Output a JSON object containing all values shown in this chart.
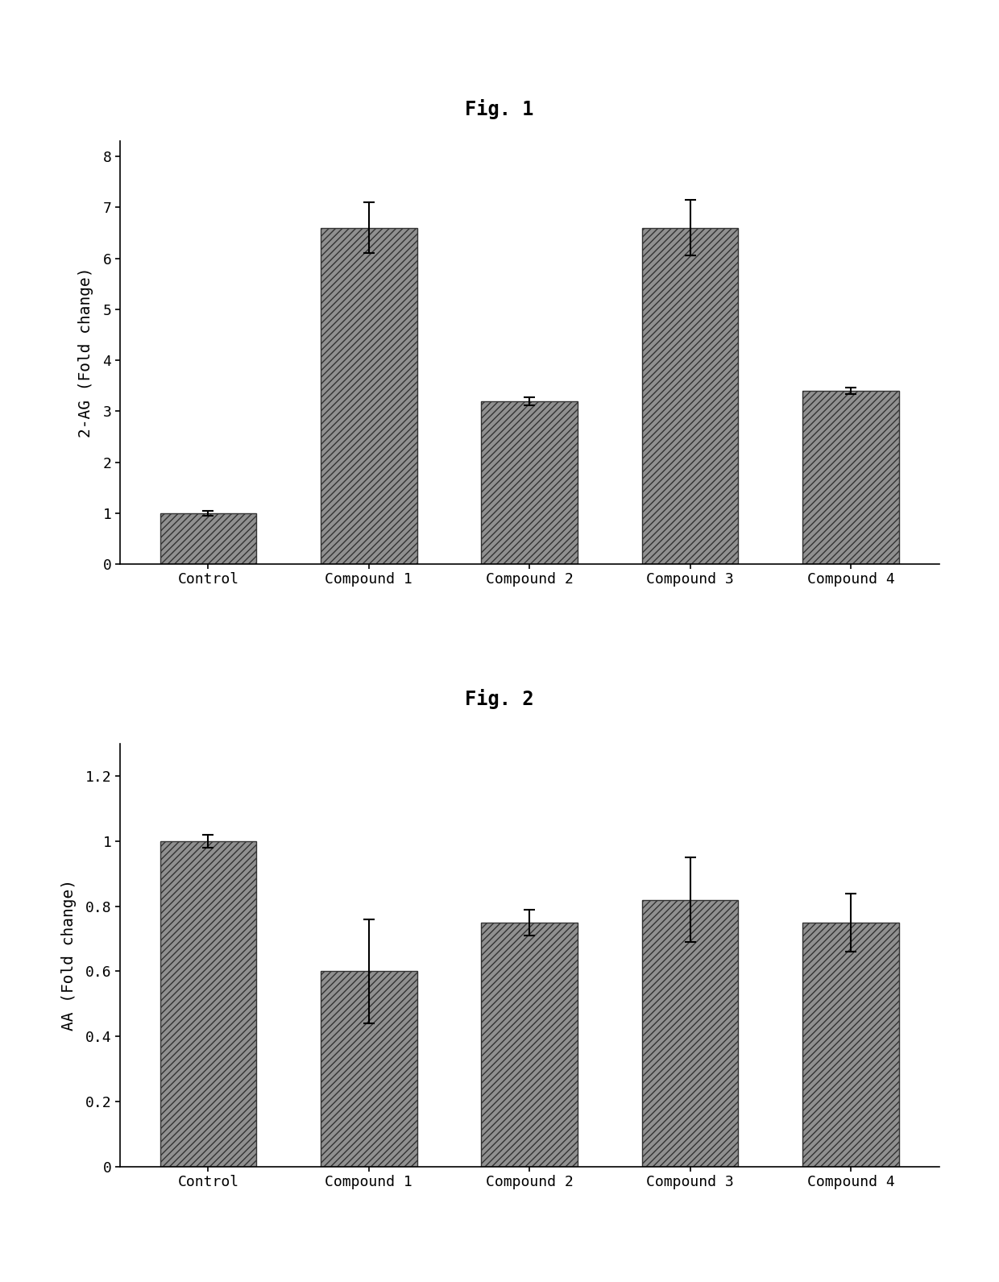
{
  "fig1": {
    "title": "Fig. 1",
    "categories": [
      "Control",
      "Compound 1",
      "Compound 2",
      "Compound 3",
      "Compound 4"
    ],
    "values": [
      1.0,
      6.6,
      3.2,
      6.6,
      3.4
    ],
    "errors": [
      0.05,
      0.5,
      0.08,
      0.55,
      0.06
    ],
    "ylabel": "2-AG (Fold change)",
    "yticks": [
      0,
      1,
      2,
      3,
      4,
      5,
      6,
      7,
      8
    ],
    "ylim": [
      0,
      8.3
    ]
  },
  "fig2": {
    "title": "Fig. 2",
    "categories": [
      "Control",
      "Compound 1",
      "Compound 2",
      "Compound 3",
      "Compound 4"
    ],
    "values": [
      1.0,
      0.6,
      0.75,
      0.82,
      0.75
    ],
    "errors": [
      0.02,
      0.16,
      0.04,
      0.13,
      0.09
    ],
    "ylabel": "AA (Fold change)",
    "yticks": [
      0,
      0.2,
      0.4,
      0.6,
      0.8,
      1.0,
      1.2
    ],
    "ylim": [
      0,
      1.3
    ]
  },
  "bar_color": "#909090",
  "hatch_pattern": "////",
  "background_color": "#ffffff",
  "title_fontsize": 17,
  "label_fontsize": 14,
  "tick_fontsize": 13,
  "bar_width": 0.6,
  "edge_color": "#333333"
}
